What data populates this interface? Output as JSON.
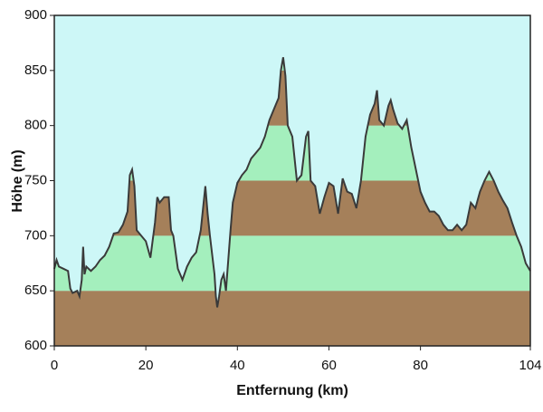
{
  "chart_data": {
    "type": "area",
    "xlabel": "Entfernung  (km)",
    "ylabel": "Höhe (m)",
    "x": [
      0,
      0.5,
      1,
      2,
      3,
      3.5,
      4,
      5,
      5.5,
      6,
      6.3,
      6.6,
      7,
      8,
      9,
      10,
      11,
      12,
      13,
      14,
      15,
      16,
      16.5,
      17,
      17.5,
      18,
      19,
      20,
      21,
      22,
      22.5,
      23,
      24,
      25,
      25.5,
      26,
      27,
      28,
      29,
      30,
      31,
      32,
      32.5,
      33,
      33.5,
      34,
      35,
      35.3,
      35.6,
      36,
      36.5,
      37,
      37.5,
      38.5,
      39,
      40,
      41,
      42,
      43,
      44,
      45,
      46,
      47,
      48,
      49,
      49.5,
      50,
      50.5,
      51,
      52,
      53,
      54,
      55,
      55.5,
      56,
      57,
      58,
      59,
      60,
      61,
      62,
      63,
      64,
      65,
      66,
      67,
      68,
      69,
      70,
      70.5,
      71,
      72,
      73,
      73.5,
      74,
      75,
      76,
      77,
      78,
      79,
      80,
      81,
      82,
      83,
      84,
      85,
      86,
      87,
      88,
      89,
      90,
      91,
      92,
      93,
      94,
      95,
      96,
      97,
      98,
      99,
      100,
      101,
      102,
      103,
      104
    ],
    "values": [
      670,
      678,
      672,
      670,
      668,
      652,
      648,
      650,
      645,
      660,
      690,
      665,
      672,
      668,
      672,
      678,
      682,
      690,
      702,
      703,
      710,
      722,
      755,
      760,
      745,
      705,
      700,
      695,
      680,
      712,
      735,
      730,
      735,
      735,
      705,
      700,
      670,
      660,
      672,
      680,
      685,
      705,
      725,
      745,
      720,
      700,
      665,
      645,
      635,
      645,
      660,
      665,
      650,
      705,
      730,
      748,
      755,
      760,
      770,
      775,
      780,
      790,
      805,
      815,
      825,
      850,
      862,
      845,
      800,
      790,
      750,
      755,
      790,
      795,
      750,
      745,
      720,
      735,
      748,
      745,
      720,
      752,
      740,
      738,
      725,
      750,
      790,
      810,
      820,
      832,
      805,
      800,
      818,
      823,
      815,
      802,
      797,
      805,
      780,
      760,
      740,
      730,
      722,
      722,
      718,
      710,
      705,
      705,
      710,
      705,
      710,
      730,
      725,
      740,
      750,
      758,
      750,
      740,
      732,
      725,
      712,
      700,
      690,
      675,
      668
    ],
    "xlim": [
      0,
      104
    ],
    "xticks": [
      0,
      20,
      40,
      60,
      80,
      104
    ],
    "ylim": [
      600,
      900
    ],
    "yticks": [
      600,
      650,
      700,
      750,
      800,
      850,
      900
    ],
    "line_color": "#3a3a3a",
    "background_color": "#cdf7f7",
    "band_colors": [
      "#a5805a",
      "#a4efbd"
    ]
  }
}
